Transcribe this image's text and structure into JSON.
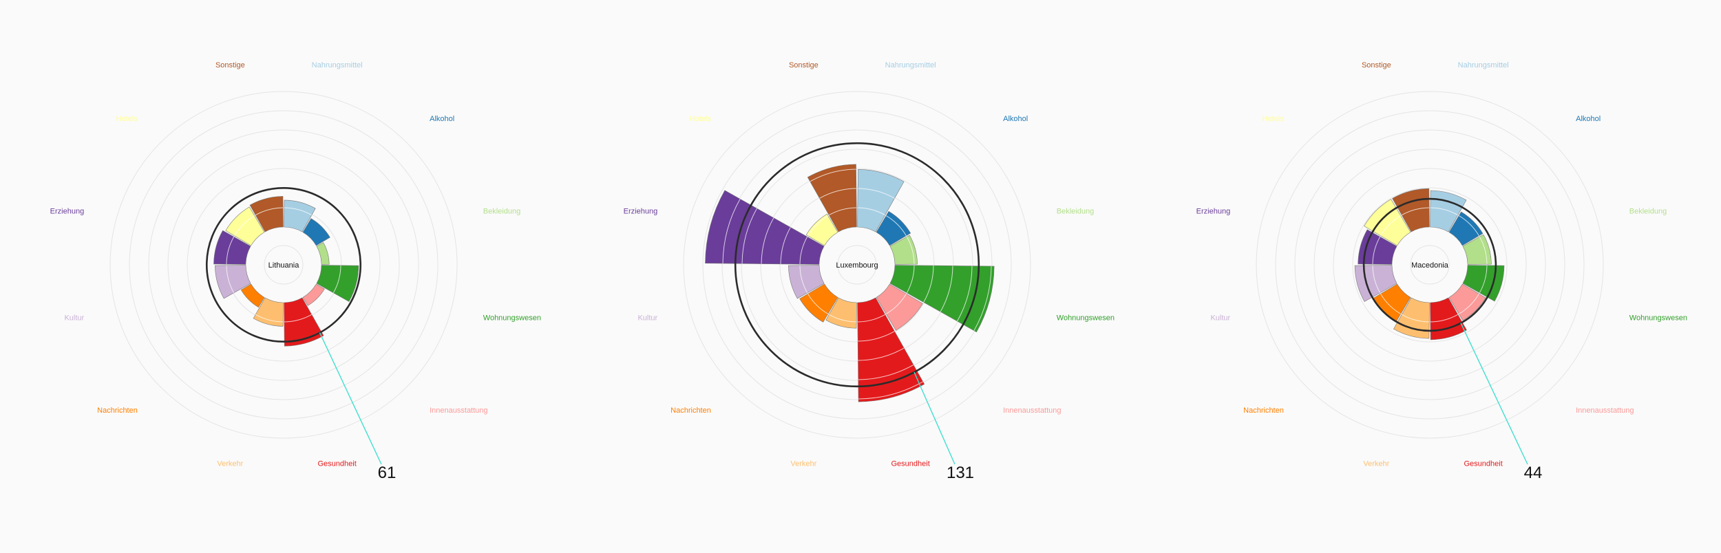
{
  "categories": [
    {
      "key": "nahrungsmittel",
      "label": "Nahrungsmittel",
      "color": "#a6cee3"
    },
    {
      "key": "alkohol",
      "label": "Alkohol",
      "color": "#1f78b4"
    },
    {
      "key": "bekleidung",
      "label": "Bekleidung",
      "color": "#b2df8a"
    },
    {
      "key": "wohnungswesen",
      "label": "Wohnungswesen",
      "color": "#33a02c"
    },
    {
      "key": "innenausstattung",
      "label": "Innenausstattung",
      "color": "#fb9a99"
    },
    {
      "key": "gesundheit",
      "label": "Gesundheit",
      "color": "#e31a1c"
    },
    {
      "key": "verkehr",
      "label": "Verkehr",
      "color": "#fdbf6f"
    },
    {
      "key": "nachrichten",
      "label": "Nachrichten",
      "color": "#ff7f00"
    },
    {
      "key": "kultur",
      "label": "Kultur",
      "color": "#cab2d6"
    },
    {
      "key": "erziehung",
      "label": "Erziehung",
      "color": "#6a3d9a"
    },
    {
      "key": "hotels",
      "label": "Hotels",
      "color": "#ffff99"
    },
    {
      "key": "sonstige",
      "label": "Sonstige",
      "color": "#b15928"
    }
  ],
  "chart_data": [
    {
      "type": "radial-bar",
      "country": "Lithuania",
      "value_label": "61",
      "values": [
        42,
        25,
        12,
        58,
        15,
        68,
        37,
        18,
        48,
        50,
        46,
        48
      ]
    },
    {
      "type": "radial-bar",
      "country": "Luxembourg",
      "value_label": "131",
      "values": [
        90,
        38,
        35,
        155,
        60,
        155,
        40,
        45,
        48,
        178,
        33,
        98
      ]
    },
    {
      "type": "radial-bar",
      "country": "Macedonia",
      "value_label": "44",
      "values": [
        57,
        37,
        37,
        57,
        42,
        58,
        56,
        45,
        58,
        53,
        60,
        60
      ]
    }
  ]
}
